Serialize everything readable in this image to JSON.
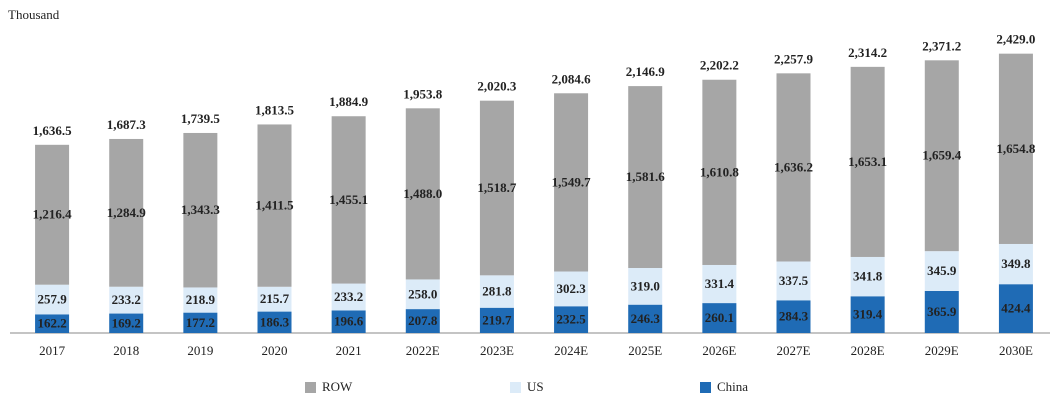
{
  "chart_data": {
    "type": "stacked_bar",
    "subtitle": "Thousand",
    "categories": [
      "2017",
      "2018",
      "2019",
      "2020",
      "2021",
      "2022E",
      "2023E",
      "2024E",
      "2025E",
      "2026E",
      "2027E",
      "2028E",
      "2029E",
      "2030E"
    ],
    "series": [
      {
        "name": "China",
        "color": "#1f6bb5",
        "values": [
          162.2,
          169.2,
          177.2,
          186.3,
          196.6,
          207.8,
          219.7,
          232.5,
          246.3,
          260.1,
          284.3,
          319.4,
          365.9,
          424.4
        ]
      },
      {
        "name": "US",
        "color": "#dcebf8",
        "values": [
          257.9,
          233.2,
          218.9,
          215.7,
          233.2,
          258.0,
          281.8,
          302.3,
          319.0,
          331.4,
          337.5,
          341.8,
          345.9,
          349.8
        ],
        "value_labels": [
          "257.9",
          "233.2",
          "218.9",
          "215.7",
          "233.2",
          "258.0",
          "281.8",
          "302.3",
          "319.0",
          "331.4",
          "337.5",
          "341.8",
          "345.9",
          "349.8"
        ]
      },
      {
        "name": "ROW",
        "color": "#a6a6a6",
        "values": [
          1216.4,
          1284.9,
          1343.3,
          1411.5,
          1455.1,
          1488.0,
          1518.7,
          1549.7,
          1581.6,
          1610.8,
          1636.2,
          1653.1,
          1659.4,
          1654.8
        ],
        "value_labels": [
          "1,216.4",
          "1,284.9",
          "1,343.3",
          "1,411.5",
          "1,455.1",
          "1,488.0",
          "1,518.7",
          "1,549.7",
          "1,581.6",
          "1,610.8",
          "1,636.2",
          "1,653.1",
          "1,659.4",
          "1,654.8"
        ]
      }
    ],
    "totals": [
      1636.5,
      1687.3,
      1739.5,
      1813.5,
      1884.9,
      1953.8,
      2020.3,
      2084.6,
      2146.9,
      2202.2,
      2257.9,
      2314.2,
      2371.2,
      2429.0
    ],
    "total_labels": [
      "1,636.5",
      "1,687.3",
      "1,739.5",
      "1,813.5",
      "1,884.9",
      "1,953.8",
      "2,020.3",
      "2,084.6",
      "2,146.9",
      "2,202.2",
      "2,257.9",
      "2,314.2",
      "2,371.2",
      "2,429.0"
    ],
    "ylim": [
      0,
      2600
    ],
    "legend": "bottom"
  }
}
